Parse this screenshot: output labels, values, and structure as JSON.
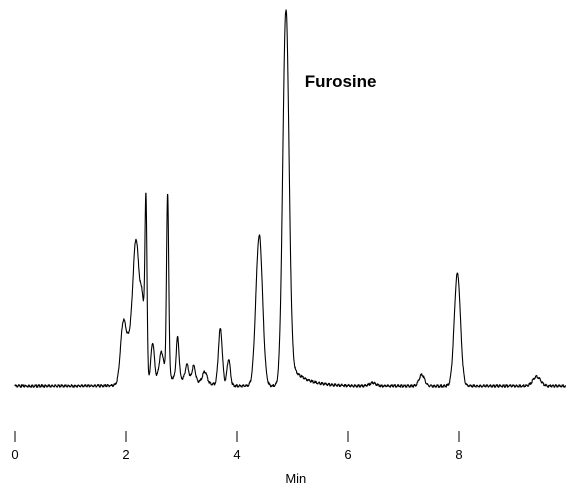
{
  "chart_data": {
    "type": "line",
    "title": "",
    "xlabel": "Min",
    "ylabel": "",
    "xlim": [
      0,
      10
    ],
    "ylim": [
      0,
      100
    ],
    "x_ticks": [
      0,
      2,
      4,
      6,
      8
    ],
    "x_tick_labels": [
      "0",
      "2",
      "4",
      "6",
      "8"
    ],
    "y_axis_shown": false,
    "grid": false,
    "legend": "none",
    "baseline": 0,
    "peaks": [
      {
        "x": 1.95,
        "height": 16,
        "width": 0.05
      },
      {
        "x": 2.05,
        "height": 8,
        "width": 0.05
      },
      {
        "x": 2.18,
        "height": 38,
        "width": 0.06
      },
      {
        "x": 2.3,
        "height": 18,
        "width": 0.04
      },
      {
        "x": 2.36,
        "height": 44,
        "width": 0.018
      },
      {
        "x": 2.48,
        "height": 10,
        "width": 0.03
      },
      {
        "x": 2.64,
        "height": 7,
        "width": 0.04
      },
      {
        "x": 2.75,
        "height": 49,
        "width": 0.02
      },
      {
        "x": 2.93,
        "height": 11,
        "width": 0.025
      },
      {
        "x": 3.1,
        "height": 4,
        "width": 0.03
      },
      {
        "x": 3.22,
        "height": 4,
        "width": 0.03
      },
      {
        "x": 3.42,
        "height": 3,
        "width": 0.04
      },
      {
        "x": 3.7,
        "height": 15,
        "width": 0.035
      },
      {
        "x": 3.85,
        "height": 7,
        "width": 0.03
      },
      {
        "x": 4.4,
        "height": 40,
        "width": 0.06,
        "tail": 0.03
      },
      {
        "x": 4.88,
        "height": 100,
        "width": 0.055,
        "tail": 0.26
      },
      {
        "x": 6.45,
        "height": 0.8,
        "width": 0.06
      },
      {
        "x": 7.33,
        "height": 3,
        "width": 0.05
      },
      {
        "x": 7.97,
        "height": 30,
        "width": 0.055,
        "tail": 0.04
      },
      {
        "x": 9.4,
        "height": 2.5,
        "width": 0.07
      }
    ],
    "annotations": [
      {
        "text": "Furosine",
        "x": 5.22,
        "y": 80
      }
    ]
  }
}
